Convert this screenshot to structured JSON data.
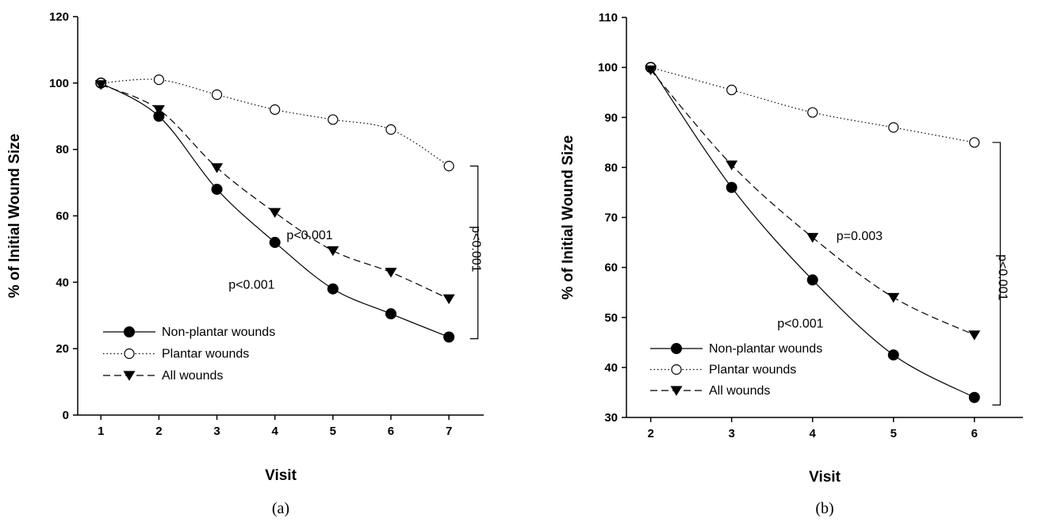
{
  "chart_data": [
    {
      "type": "line",
      "panel_label": "(a)",
      "xlabel": "Visit",
      "ylabel": "% of Initial Wound Size",
      "xlim": [
        0.6,
        7.6
      ],
      "ylim": [
        0,
        120
      ],
      "xticks": [
        1,
        2,
        3,
        4,
        5,
        6,
        7
      ],
      "yticks": [
        0,
        20,
        40,
        60,
        80,
        100,
        120
      ],
      "grid": false,
      "legend_position": "bottom-left",
      "series": [
        {
          "name": "Non-plantar wounds",
          "marker": "filled-circle",
          "linestyle": "solid",
          "x": [
            1,
            2,
            3,
            4,
            5,
            6,
            7
          ],
          "y": [
            100,
            90,
            68,
            52,
            38,
            30.5,
            23.5
          ]
        },
        {
          "name": "Plantar wounds",
          "marker": "open-circle",
          "linestyle": "dotted",
          "x": [
            1,
            2,
            3,
            4,
            5,
            6,
            7
          ],
          "y": [
            100,
            101,
            96.5,
            92,
            89,
            86,
            75
          ]
        },
        {
          "name": "All wounds",
          "marker": "filled-triangle-down",
          "linestyle": "dashed",
          "x": [
            1,
            2,
            3,
            4,
            5,
            6,
            7
          ],
          "y": [
            99.5,
            92,
            74.5,
            61,
            49.5,
            43,
            35
          ]
        }
      ],
      "annotations": [
        {
          "text": "p<0.001",
          "x": 4.6,
          "y": 53,
          "rotate": 0
        },
        {
          "text": "p<0.001",
          "x": 3.6,
          "y": 38,
          "rotate": 0
        },
        {
          "text": "p<0.001",
          "x": 7.4,
          "y": 50,
          "rotate": 90
        }
      ],
      "bracket": {
        "x": 7.5,
        "y_top": 75,
        "y_bottom": 23
      }
    },
    {
      "type": "line",
      "panel_label": "(b)",
      "xlabel": "Visit",
      "ylabel": "% of Initial Wound Size",
      "xlim": [
        1.7,
        6.6
      ],
      "ylim": [
        30,
        110
      ],
      "xticks": [
        2,
        3,
        4,
        5,
        6
      ],
      "yticks": [
        30,
        40,
        50,
        60,
        70,
        80,
        90,
        100,
        110
      ],
      "grid": false,
      "legend_position": "bottom-left",
      "series": [
        {
          "name": "Non-plantar wounds",
          "marker": "filled-circle",
          "linestyle": "solid",
          "x": [
            2,
            3,
            4,
            5,
            6
          ],
          "y": [
            100,
            76,
            57.5,
            42.5,
            34
          ]
        },
        {
          "name": "Plantar wounds",
          "marker": "open-circle",
          "linestyle": "dotted",
          "x": [
            2,
            3,
            4,
            5,
            6
          ],
          "y": [
            100,
            95.5,
            91,
            88,
            85
          ]
        },
        {
          "name": "All wounds",
          "marker": "filled-triangle-down",
          "linestyle": "dashed",
          "x": [
            2,
            3,
            4,
            5,
            6
          ],
          "y": [
            99.5,
            80.5,
            66,
            54,
            46.5
          ]
        }
      ],
      "annotations": [
        {
          "text": "p=0.003",
          "x": 4.58,
          "y": 65.5,
          "rotate": 0
        },
        {
          "text": "p<0.001",
          "x": 3.85,
          "y": 48,
          "rotate": 0
        },
        {
          "text": "p<0.001",
          "x": 6.3,
          "y": 58,
          "rotate": 90
        }
      ],
      "bracket": {
        "x": 6.32,
        "y_top": 85,
        "y_bottom": 32.5
      }
    }
  ]
}
